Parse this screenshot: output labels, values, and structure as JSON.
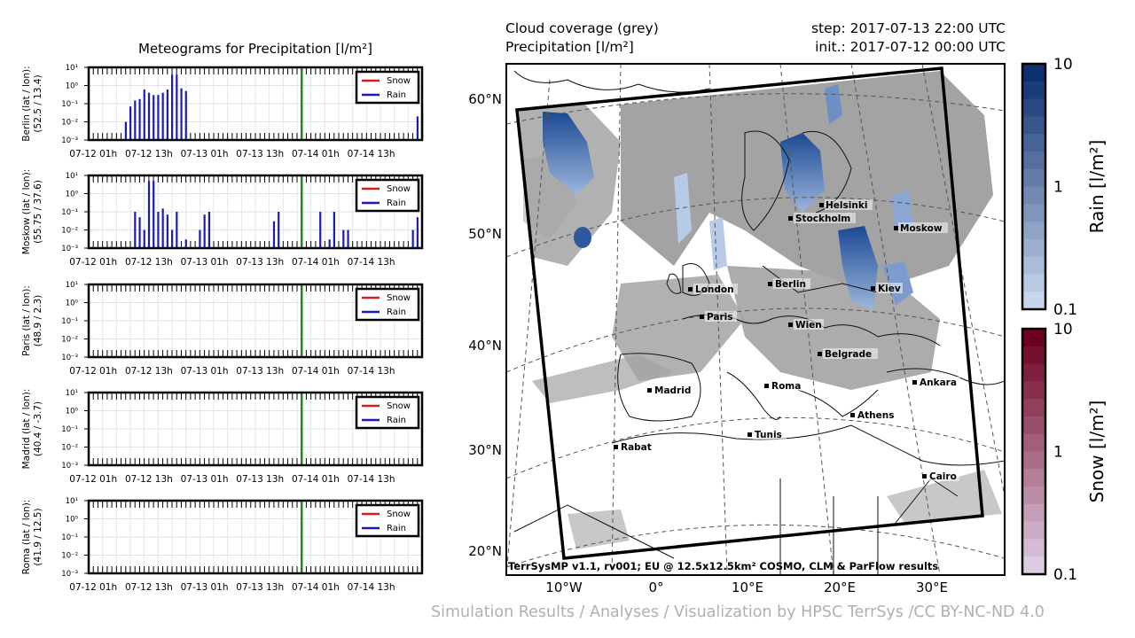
{
  "meteograms": {
    "title": "Meteograms for Precipitation [l/m²]",
    "x_ticks": [
      "07-12 01h",
      "07-12 13h",
      "07-13 01h",
      "07-13 13h",
      "07-14 01h",
      "07-14 13h"
    ],
    "y_ticks": [
      "10¹",
      "10⁰",
      "10⁻¹",
      "10⁻²",
      "10⁻³"
    ],
    "legend": [
      "Snow",
      "Rain"
    ],
    "colors": {
      "snow": "#d62020",
      "rain": "#1c1cb8",
      "step_line": "#1a8a1a"
    }
  },
  "chart_data": [
    {
      "type": "bar",
      "station": "Berlin",
      "ylabel_line1": "Berlin (lat / lon):",
      "ylabel_line2": "(52.5 / 13.4)",
      "yscale": "log",
      "ylim": [
        0.001,
        10
      ],
      "x_hours": [
        0,
        72
      ],
      "current_step_hour": 46,
      "series": [
        {
          "name": "Rain",
          "points": [
            [
              8,
              0.01
            ],
            [
              9,
              0.07
            ],
            [
              10,
              0.15
            ],
            [
              11,
              0.18
            ],
            [
              12,
              0.6
            ],
            [
              13,
              0.4
            ],
            [
              14,
              0.3
            ],
            [
              15,
              0.3
            ],
            [
              16,
              0.4
            ],
            [
              17,
              0.6
            ],
            [
              18,
              4
            ],
            [
              19,
              4
            ],
            [
              20,
              0.7
            ],
            [
              21,
              0.5
            ],
            [
              71,
              0.02
            ],
            [
              72,
              0.06
            ]
          ]
        },
        {
          "name": "Snow",
          "points": []
        }
      ]
    },
    {
      "type": "bar",
      "station": "Moskow",
      "ylabel_line1": "Moskow (lat / lon):",
      "ylabel_line2": "(55.75 / 37.6)",
      "yscale": "log",
      "ylim": [
        0.001,
        10
      ],
      "x_hours": [
        0,
        72
      ],
      "current_step_hour": 46,
      "series": [
        {
          "name": "Rain",
          "points": [
            [
              10,
              0.1
            ],
            [
              11,
              0.05
            ],
            [
              12,
              0.01
            ],
            [
              13,
              5
            ],
            [
              14,
              5
            ],
            [
              15,
              0.1
            ],
            [
              16,
              0.15
            ],
            [
              17,
              0.07
            ],
            [
              18,
              0.01
            ],
            [
              19,
              0.1
            ],
            [
              21,
              0.003
            ],
            [
              24,
              0.01
            ],
            [
              25,
              0.07
            ],
            [
              26,
              0.1
            ],
            [
              40,
              0.03
            ],
            [
              41,
              0.1
            ],
            [
              50,
              0.1
            ],
            [
              52,
              0.003
            ],
            [
              53,
              0.1
            ],
            [
              55,
              0.01
            ],
            [
              56,
              0.01
            ],
            [
              70,
              0.01
            ],
            [
              71,
              0.05
            ]
          ]
        },
        {
          "name": "Snow",
          "points": []
        }
      ]
    },
    {
      "type": "bar",
      "station": "Paris",
      "ylabel_line1": "Paris (lat / lon):",
      "ylabel_line2": "(48.9 / 2.3)",
      "yscale": "log",
      "ylim": [
        0.001,
        10
      ],
      "x_hours": [
        0,
        72
      ],
      "current_step_hour": 46,
      "series": [
        {
          "name": "Rain",
          "points": []
        },
        {
          "name": "Snow",
          "points": []
        }
      ]
    },
    {
      "type": "bar",
      "station": "Madrid",
      "ylabel_line1": "Madrid (lat / lon):",
      "ylabel_line2": "(40.4 / -3.7)",
      "yscale": "log",
      "ylim": [
        0.001,
        10
      ],
      "x_hours": [
        0,
        72
      ],
      "current_step_hour": 46,
      "series": [
        {
          "name": "Rain",
          "points": []
        },
        {
          "name": "Snow",
          "points": []
        }
      ]
    },
    {
      "type": "bar",
      "station": "Roma",
      "ylabel_line1": "Roma (lat / lon):",
      "ylabel_line2": "(41.9 / 12.5)",
      "yscale": "log",
      "ylim": [
        0.001,
        10
      ],
      "x_hours": [
        0,
        72
      ],
      "current_step_hour": 46,
      "series": [
        {
          "name": "Rain",
          "points": []
        },
        {
          "name": "Snow",
          "points": []
        }
      ]
    }
  ],
  "map": {
    "title_line1": "Cloud coverage (grey)",
    "title_line2": "Precipitation [l/m²]",
    "step": "step: 2017-07-13 22:00 UTC",
    "init": "init.: 2017-07-12 00:00 UTC",
    "lat_labels": [
      "60°N",
      "50°N",
      "40°N",
      "30°N",
      "20°N"
    ],
    "lon_labels": [
      "10°W",
      "0°",
      "10°E",
      "20°E",
      "30°E"
    ],
    "cities": [
      "Helsinki",
      "Stockholm",
      "Moskow",
      "London",
      "Berlin",
      "Kiev",
      "Paris",
      "Wien",
      "Belgrade",
      "Madrid",
      "Roma",
      "Ankara",
      "Athens",
      "Tunis",
      "Rabat",
      "Cairo"
    ],
    "model_note": "TerrSysMP v1.1, rv001; EU @ 12.5x12.5km² COSMO, CLM & ParFlow results",
    "cloud_color": "#a3a3a3"
  },
  "colorbars": {
    "rain": {
      "label": "Rain [l/m²]",
      "ticks": [
        "10",
        "1",
        "0.1"
      ],
      "colors": [
        "#0d2f6e",
        "#c8d6ec"
      ]
    },
    "snow": {
      "label": "Snow [l/m²]",
      "ticks": [
        "10",
        "1",
        "0.1"
      ],
      "colors": [
        "#6e0020",
        "#dccde3"
      ]
    }
  },
  "footer": "Simulation Results / Analyses / Visualization by HPSC TerrSys /CC BY-NC-ND 4.0"
}
